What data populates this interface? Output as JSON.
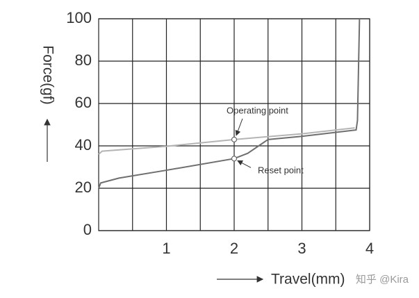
{
  "chart_data": {
    "type": "line",
    "xlabel": "Travel(mm)",
    "ylabel": "Force(gf)",
    "xlim": [
      0,
      4
    ],
    "ylim": [
      0,
      100
    ],
    "xticks": [
      1,
      2,
      3,
      4
    ],
    "xminor": [
      0.5,
      1.5,
      2.5,
      3.5
    ],
    "yticks": [
      0,
      20,
      40,
      60,
      80,
      100
    ],
    "grid": true,
    "series": [
      {
        "name": "Operating",
        "color": "#b4b4b4",
        "x": [
          0,
          0.05,
          1,
          2,
          3,
          3.78
        ],
        "values": [
          36,
          37.5,
          39.8,
          43,
          45.7,
          48.5
        ]
      },
      {
        "name": "Reset",
        "color": "#6e6e6e",
        "x": [
          0,
          0.03,
          0.3,
          1,
          2,
          2.2,
          2.5,
          3,
          3.8,
          3.82,
          3.85
        ],
        "values": [
          20,
          22.5,
          24.8,
          28.5,
          34,
          36.5,
          43,
          44.5,
          47.5,
          52,
          100
        ]
      }
    ],
    "annotations": [
      {
        "text": "Operating point",
        "x": 2,
        "y": 43
      },
      {
        "text": "Reset point",
        "x": 2,
        "y": 34
      }
    ],
    "watermark": "知乎 @Kira"
  }
}
